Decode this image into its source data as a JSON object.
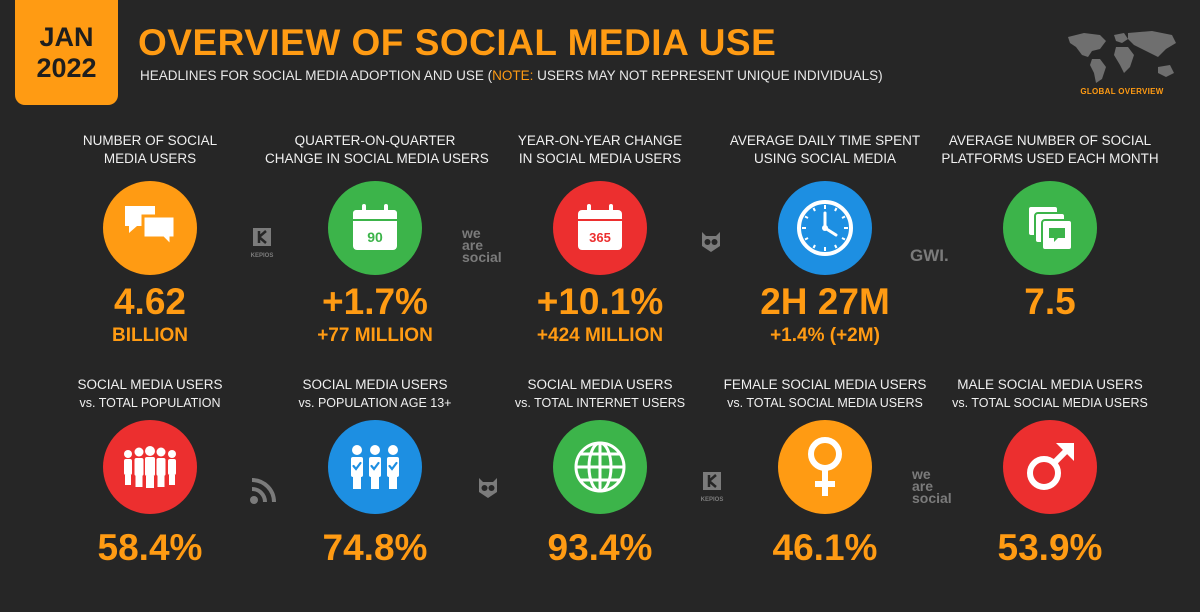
{
  "header": {
    "badge_month": "JAN",
    "badge_year": "2022",
    "title": "OVERVIEW OF SOCIAL MEDIA USE",
    "subtitle_before": "HEADLINES FOR SOCIAL MEDIA ADOPTION AND USE (",
    "subtitle_note": "NOTE:",
    "subtitle_after": " USERS MAY NOT REPRESENT UNIQUE INDIVIDUALS)",
    "section_label": "GLOBAL OVERVIEW"
  },
  "top_row": [
    {
      "label_line1": "NUMBER OF SOCIAL",
      "label_line2": "MEDIA USERS",
      "icon": "chat-bubbles-icon",
      "color": "#ff9b13",
      "value": "4.62",
      "sub": "BILLION"
    },
    {
      "label_line1": "QUARTER-ON-QUARTER",
      "label_line2": "CHANGE IN SOCIAL MEDIA USERS",
      "icon": "calendar-icon",
      "icon_text": "90",
      "color": "#3cb44a",
      "value": "+1.7%",
      "sub": "+77 MILLION"
    },
    {
      "label_line1": "YEAR-ON-YEAR CHANGE",
      "label_line2": "IN SOCIAL MEDIA USERS",
      "icon": "calendar-icon",
      "icon_text": "365",
      "color": "#ec2f2f",
      "value": "+10.1%",
      "sub": "+424 MILLION"
    },
    {
      "label_line1": "AVERAGE DAILY TIME SPENT",
      "label_line2": "USING SOCIAL MEDIA",
      "icon": "clock-icon",
      "color": "#1d8fe2",
      "value": "2H 27M",
      "sub": "+1.4% (+2M)"
    },
    {
      "label_line1": "AVERAGE NUMBER OF SOCIAL",
      "label_line2": "PLATFORMS USED EACH MONTH",
      "icon": "stacked-windows-icon",
      "color": "#3cb44a",
      "value": "7.5",
      "sub": ""
    }
  ],
  "bottom_row": [
    {
      "label_line1": "SOCIAL MEDIA USERS",
      "label_line2": "vs. TOTAL POPULATION",
      "icon": "people-icon",
      "color": "#ec2f2f",
      "value": "58.4%"
    },
    {
      "label_line1": "SOCIAL MEDIA USERS",
      "label_line2": "vs. POPULATION AGE 13+",
      "icon": "people-check-icon",
      "color": "#1d8fe2",
      "value": "74.8%"
    },
    {
      "label_line1": "SOCIAL MEDIA USERS",
      "label_line2": "vs. TOTAL INTERNET USERS",
      "icon": "globe-icon",
      "color": "#3cb44a",
      "value": "93.4%"
    },
    {
      "label_line1": "FEMALE SOCIAL MEDIA USERS",
      "label_line2": "vs. TOTAL SOCIAL MEDIA USERS",
      "icon": "female-symbol-icon",
      "color": "#ff9b13",
      "value": "46.1%"
    },
    {
      "label_line1": "MALE SOCIAL MEDIA USERS",
      "label_line2": "vs. TOTAL SOCIAL MEDIA USERS",
      "icon": "male-symbol-icon",
      "color": "#ec2f2f",
      "value": "53.9%"
    }
  ],
  "logos": {
    "kepios_name": "KEPIOS",
    "wearesocial_line1": "we",
    "wearesocial_line2": "are",
    "wearesocial_line3": "social",
    "gwi": "GWI."
  }
}
